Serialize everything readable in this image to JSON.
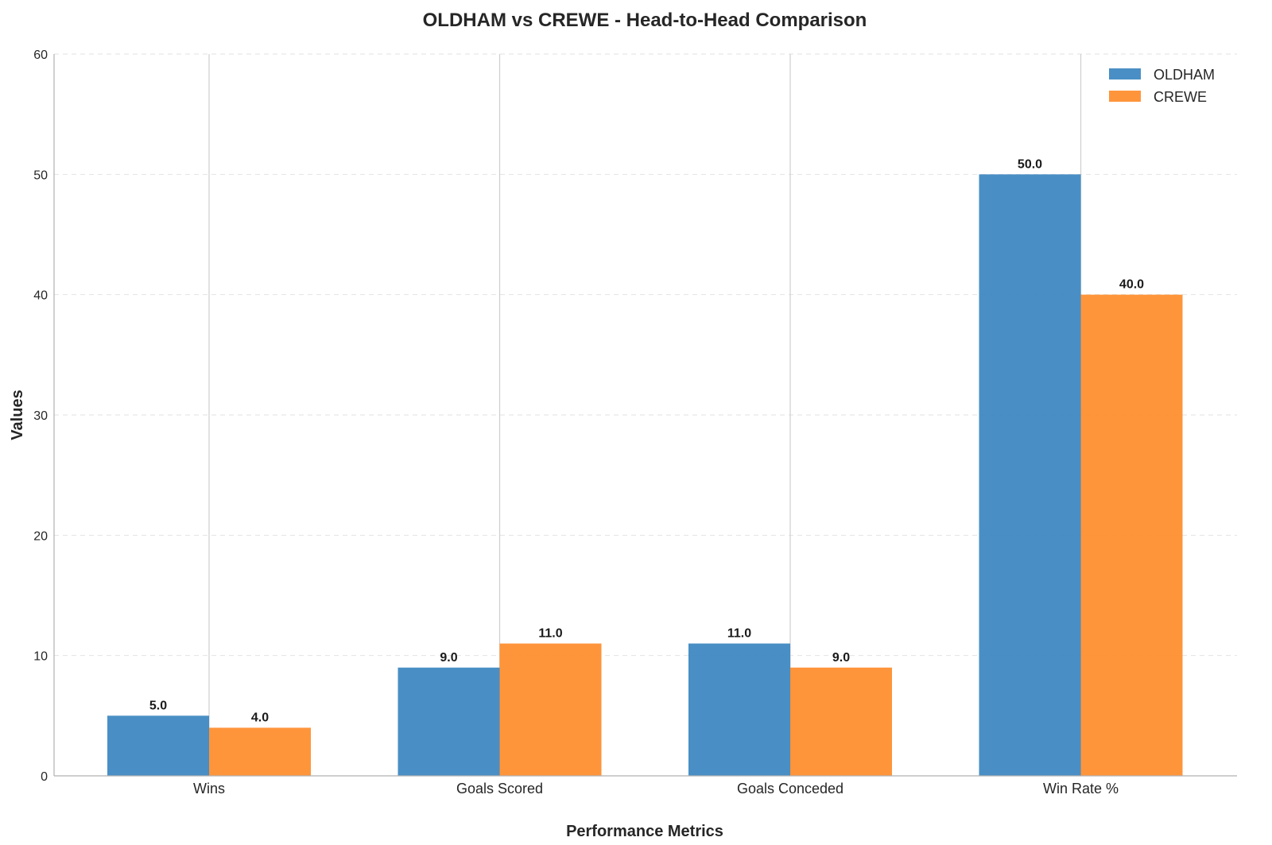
{
  "chart_data": {
    "type": "bar",
    "title": "OLDHAM vs CREWE - Head-to-Head Comparison",
    "xlabel": "Performance Metrics",
    "ylabel": "Values",
    "categories": [
      "Wins",
      "Goals Scored",
      "Goals Conceded",
      "Win Rate %"
    ],
    "series": [
      {
        "name": "OLDHAM",
        "values": [
          5.0,
          9.0,
          11.0,
          50.0
        ],
        "color": "#3a86c0",
        "value_labels": [
          "5.0",
          "9.0",
          "11.0",
          "50.0"
        ]
      },
      {
        "name": "CREWE",
        "values": [
          4.0,
          11.0,
          9.0,
          40.0
        ],
        "color": "#ff8c2a",
        "value_labels": [
          "4.0",
          "11.0",
          "9.0",
          "40.0"
        ]
      }
    ],
    "ylim": [
      0,
      60
    ],
    "yticks": [
      0,
      10,
      20,
      30,
      40,
      50,
      60
    ],
    "ytick_labels": [
      "0",
      "10",
      "20",
      "30",
      "40",
      "50",
      "60"
    ],
    "grid": true,
    "legend_position": "top-right"
  }
}
